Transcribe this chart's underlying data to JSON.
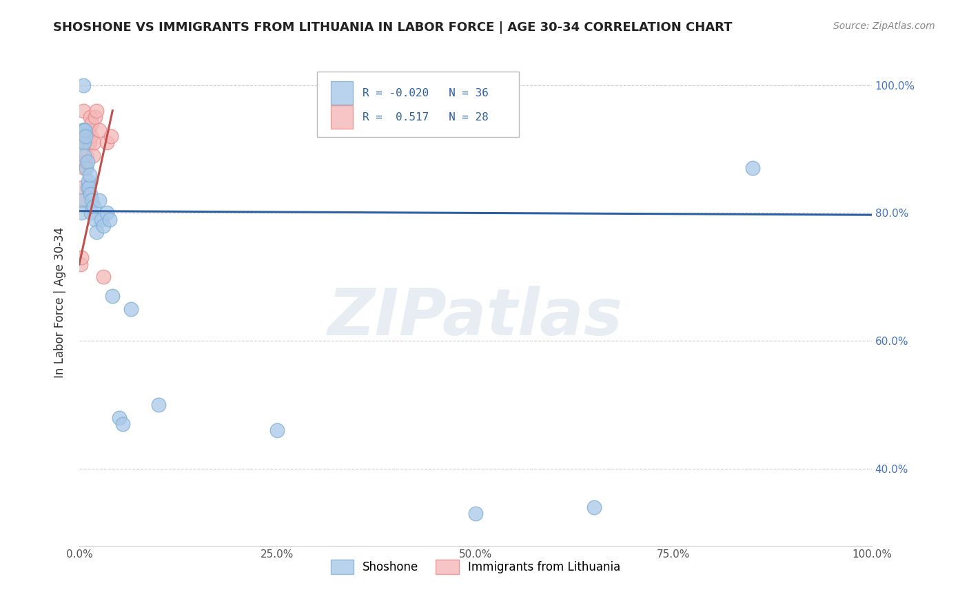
{
  "title": "SHOSHONE VS IMMIGRANTS FROM LITHUANIA IN LABOR FORCE | AGE 30-34 CORRELATION CHART",
  "source": "Source: ZipAtlas.com",
  "ylabel": "In Labor Force | Age 30-34",
  "xlim": [
    0.0,
    1.0
  ],
  "ylim": [
    0.28,
    1.04
  ],
  "ytick_labels": [
    "40.0%",
    "60.0%",
    "80.0%",
    "100.0%"
  ],
  "ytick_values": [
    0.4,
    0.6,
    0.8,
    1.0
  ],
  "xtick_labels": [
    "0.0%",
    "25.0%",
    "50.0%",
    "75.0%",
    "100.0%"
  ],
  "xtick_values": [
    0.0,
    0.25,
    0.5,
    0.75,
    1.0
  ],
  "shoshone_x": [
    0.002,
    0.003,
    0.004,
    0.004,
    0.005,
    0.005,
    0.006,
    0.006,
    0.007,
    0.008,
    0.009,
    0.01,
    0.01,
    0.011,
    0.012,
    0.013,
    0.014,
    0.015,
    0.016,
    0.018,
    0.02,
    0.022,
    0.025,
    0.028,
    0.03,
    0.035,
    0.038,
    0.042,
    0.05,
    0.055,
    0.065,
    0.1,
    0.25,
    0.5,
    0.65,
    0.85
  ],
  "shoshone_y": [
    0.82,
    0.8,
    0.93,
    0.91,
    0.93,
    1.0,
    0.91,
    0.89,
    0.93,
    0.92,
    0.87,
    0.84,
    0.88,
    0.85,
    0.84,
    0.86,
    0.83,
    0.8,
    0.82,
    0.81,
    0.79,
    0.77,
    0.82,
    0.79,
    0.78,
    0.8,
    0.79,
    0.67,
    0.48,
    0.47,
    0.65,
    0.5,
    0.46,
    0.33,
    0.34,
    0.87
  ],
  "lithuania_x": [
    0.002,
    0.003,
    0.004,
    0.004,
    0.005,
    0.005,
    0.006,
    0.007,
    0.007,
    0.008,
    0.009,
    0.009,
    0.01,
    0.01,
    0.011,
    0.012,
    0.013,
    0.014,
    0.015,
    0.016,
    0.017,
    0.018,
    0.02,
    0.022,
    0.025,
    0.03,
    0.035,
    0.04
  ],
  "lithuania_y": [
    0.72,
    0.73,
    0.82,
    0.84,
    0.88,
    0.96,
    0.87,
    0.91,
    0.93,
    0.88,
    0.89,
    0.92,
    0.93,
    0.91,
    0.92,
    0.93,
    0.91,
    0.95,
    0.92,
    0.94,
    0.89,
    0.91,
    0.95,
    0.96,
    0.93,
    0.7,
    0.91,
    0.92
  ],
  "shoshone_R": -0.02,
  "shoshone_N": 36,
  "lithuania_R": 0.517,
  "lithuania_N": 28,
  "blue_color": "#a8c8e8",
  "blue_edge_color": "#7bafd4",
  "pink_color": "#f4b8b8",
  "pink_edge_color": "#e88888",
  "blue_line_color": "#2e5fa3",
  "pink_line_color": "#c0504d",
  "grid_color": "#cccccc",
  "watermark_color": "#d0dce8",
  "background_color": "#ffffff",
  "right_tick_color": "#4472c4",
  "title_color": "#222222",
  "source_color": "#888888",
  "legend_box_color": "#dddddd",
  "blue_trend_start_x": 0.0,
  "blue_trend_end_x": 1.0,
  "blue_trend_start_y": 0.803,
  "blue_trend_end_y": 0.797,
  "pink_trend_start_x": 0.0,
  "pink_trend_end_x": 0.042,
  "pink_trend_start_y": 0.72,
  "pink_trend_end_y": 0.96
}
